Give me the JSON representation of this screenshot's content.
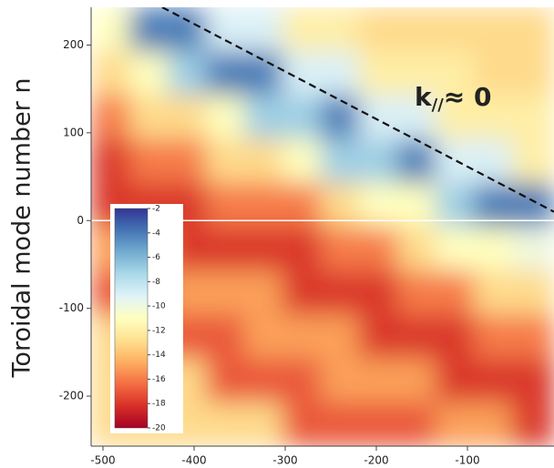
{
  "chart_data": {
    "type": "heatmap",
    "y_label": "Toroidal mode number n",
    "xlim": [
      -513,
      -5
    ],
    "ylim": [
      -257,
      243
    ],
    "xticks": [
      -500,
      -400,
      -300,
      -200,
      -100
    ],
    "yticks": [
      200,
      100,
      0,
      -100,
      -200
    ],
    "xbins": [
      -513,
      -471,
      -429,
      -387,
      -345,
      -303,
      -261,
      -219,
      -177,
      -135,
      -93,
      -51,
      -5
    ],
    "ybins": [
      243,
      193,
      143,
      93,
      43,
      -7,
      -57,
      -107,
      -157,
      -207,
      -257
    ],
    "z": [
      [
        -11,
        -4,
        -4,
        -9,
        -9,
        -12,
        -12,
        -13,
        -13,
        -13,
        -13,
        -13
      ],
      [
        -13,
        -11,
        -7,
        -4,
        -4,
        -9,
        -9,
        -12,
        -12,
        -12,
        -13,
        -13
      ],
      [
        -16,
        -13,
        -13,
        -11,
        -7,
        -7,
        -4,
        -9,
        -9,
        -12,
        -12,
        -12
      ],
      [
        -18,
        -16,
        -16,
        -13,
        -13,
        -11,
        -7,
        -7,
        -4,
        -9,
        -9,
        -12
      ],
      [
        -18,
        -18,
        -18,
        -16,
        -16,
        -16,
        -13,
        -11,
        -11,
        -7,
        -4,
        -4
      ],
      [
        -15,
        -15,
        -18,
        -18,
        -18,
        -18,
        -16,
        -16,
        -13,
        -11,
        -11,
        -10
      ],
      [
        -17,
        -17,
        -15,
        -15,
        -15,
        -18,
        -18,
        -18,
        -16,
        -16,
        -13,
        -13
      ],
      [
        -13,
        -17,
        -17,
        -17,
        -15,
        -15,
        -15,
        -18,
        -18,
        -18,
        -16,
        -16
      ],
      [
        -13,
        -13,
        -13,
        -17,
        -17,
        -17,
        -15,
        -15,
        -15,
        -18,
        -18,
        -18
      ],
      [
        -13,
        -13,
        -13,
        -13,
        -13,
        -17,
        -17,
        -17,
        -17,
        -15,
        -15,
        -18
      ]
    ],
    "colorscale": [
      "#a50026",
      "#d73027",
      "#f46d43",
      "#fdae61",
      "#fee090",
      "#ffffbf",
      "#e0f3f8",
      "#abd9e9",
      "#74add1",
      "#4575b4",
      "#313695"
    ],
    "clim": [
      -20,
      -2
    ],
    "cticks": [
      -2,
      -4,
      -6,
      -8,
      -10,
      -12,
      -14,
      -16,
      -18,
      -20
    ],
    "hline": 0,
    "hline_color": "#ffffff",
    "reference_line": {
      "x": [
        -435,
        -5
      ],
      "y": [
        243,
        10
      ],
      "color": "#111111"
    },
    "annotation": {
      "base": "k",
      "sub": "//",
      "rest": "≈ 0"
    }
  }
}
